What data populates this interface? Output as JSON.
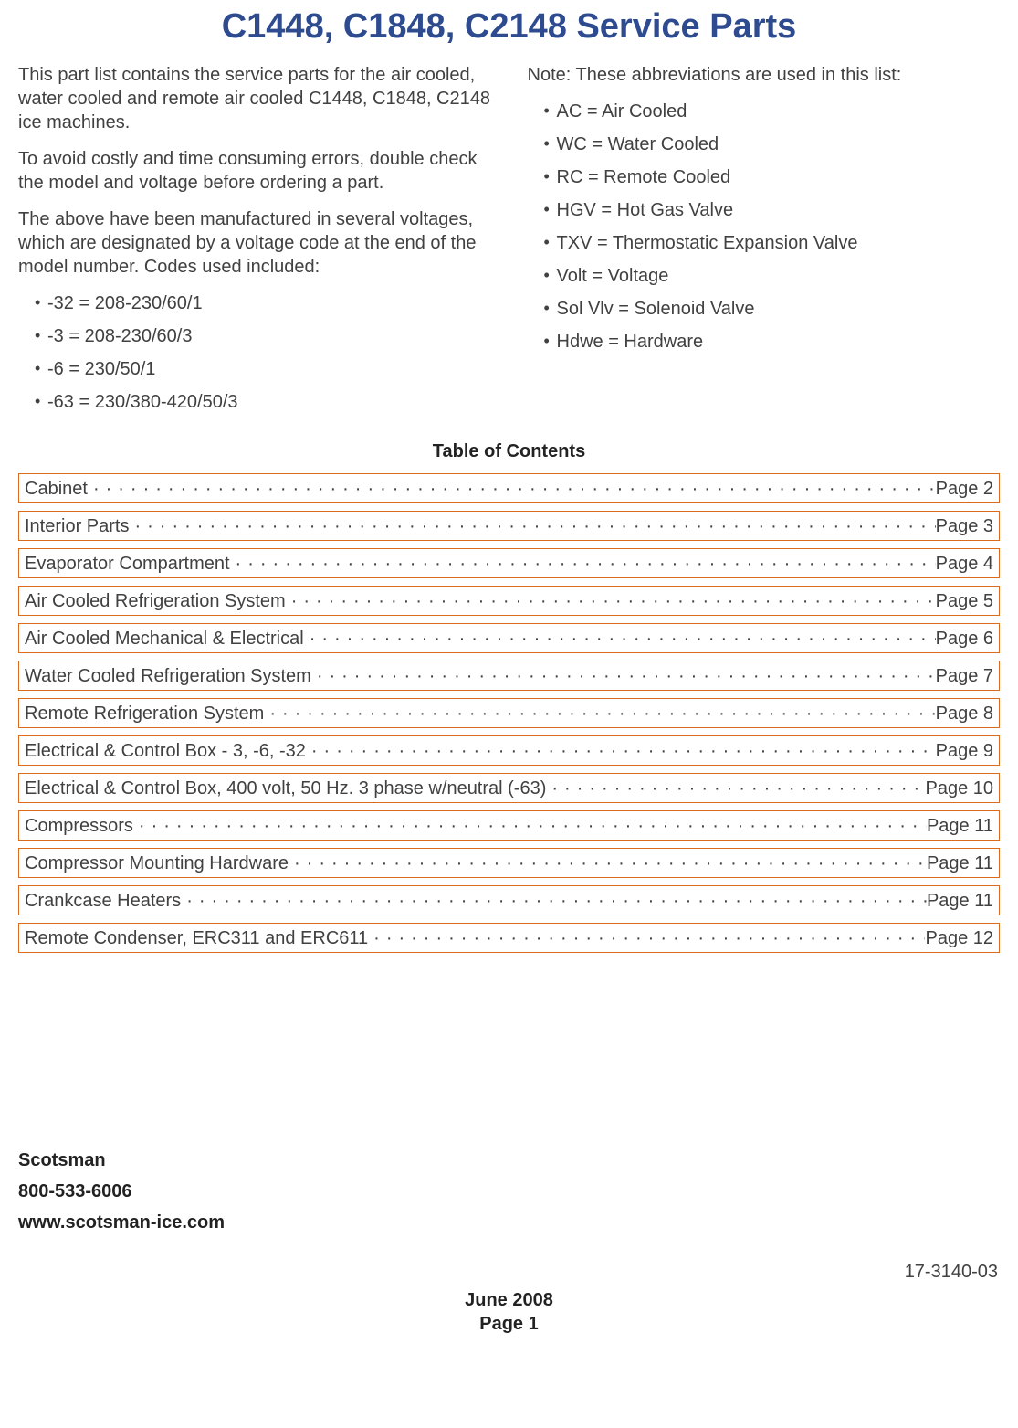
{
  "title": "C1448, C1848, C2148 Service Parts",
  "leftCol": {
    "p1": "This part list contains the service parts for the air cooled, water cooled and remote air cooled C1448, C1848, C2148 ice machines.",
    "p2": "To avoid costly and time consuming errors, double check the model and voltage before ordering a part.",
    "p3": "The above have been manufactured in several voltages, which are designated by a voltage code at the end of the model number. Codes used included:",
    "bullets": [
      "-32 = 208-230/60/1",
      "-3 = 208-230/60/3",
      "-6 = 230/50/1",
      "-63 = 230/380-420/50/3"
    ]
  },
  "rightCol": {
    "p1": "Note: These abbreviations are used in this list:",
    "bullets": [
      "AC = Air Cooled",
      "WC = Water Cooled",
      "RC = Remote Cooled",
      "HGV = Hot Gas Valve",
      "TXV = Thermostatic Expansion Valve",
      "Volt = Voltage",
      "Sol Vlv = Solenoid Valve",
      "Hdwe = Hardware"
    ]
  },
  "tocHeader": "Table of Contents",
  "toc": [
    {
      "label": "Cabinet",
      "page": "Page 2"
    },
    {
      "label": "Interior Parts",
      "page": "Page 3"
    },
    {
      "label": "Evaporator Compartment",
      "page": "Page 4"
    },
    {
      "label": "Air Cooled Refrigeration System",
      "page": "Page 5"
    },
    {
      "label": "Air Cooled Mechanical & Electrical",
      "page": "Page 6"
    },
    {
      "label": "Water Cooled Refrigeration System",
      "page": "Page 7"
    },
    {
      "label": "Remote Refrigeration System",
      "page": "Page 8"
    },
    {
      "label": "Electrical & Control Box - 3, -6, -32",
      "page": "Page 9"
    },
    {
      "label": "Electrical & Control Box, 400 volt, 50 Hz. 3 phase w/neutral (-63)",
      "page": "Page 10"
    },
    {
      "label": "Compressors",
      "page": "Page 11"
    },
    {
      "label": "Compressor Mounting Hardware",
      "page": "Page 11"
    },
    {
      "label": "Crankcase Heaters",
      "page": "Page 11"
    },
    {
      "label": "Remote Condenser, ERC311 and ERC611",
      "page": "Page 12"
    }
  ],
  "contact": {
    "company": "Scotsman",
    "phone": "800-533-6006",
    "website": "www.scotsman-ice.com"
  },
  "docNumber": "17-3140-03",
  "footer": {
    "date": "June 2008",
    "page": "Page 1"
  },
  "colors": {
    "titleColor": "#2e4b8f",
    "textColor": "#414141",
    "tocBorder": "#db6b1f",
    "background": "#ffffff"
  }
}
